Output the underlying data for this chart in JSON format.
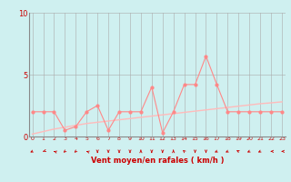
{
  "title": "",
  "xlabel": "Vent moyen/en rafales ( km/h )",
  "ylabel": "",
  "bg_color": "#cff0f0",
  "grid_color": "#aaaaaa",
  "line_color": "#ff8888",
  "regression_color": "#ffbbbb",
  "x_values": [
    0,
    1,
    2,
    3,
    4,
    5,
    6,
    7,
    8,
    9,
    10,
    11,
    12,
    13,
    14,
    15,
    16,
    17,
    18,
    19,
    20,
    21,
    22,
    23
  ],
  "y_scatter": [
    2.0,
    2.0,
    2.0,
    0.5,
    0.8,
    2.0,
    2.5,
    0.5,
    2.0,
    2.0,
    2.0,
    4.0,
    0.3,
    2.0,
    4.2,
    4.2,
    6.5,
    4.2,
    2.0,
    2.0,
    2.0,
    2.0,
    2.0,
    2.0
  ],
  "y_regression": [
    0.2,
    0.4,
    0.6,
    0.75,
    0.9,
    1.05,
    1.15,
    1.25,
    1.35,
    1.45,
    1.55,
    1.65,
    1.75,
    1.85,
    1.95,
    2.05,
    2.15,
    2.25,
    2.35,
    2.45,
    2.55,
    2.65,
    2.72,
    2.8
  ],
  "ylim": [
    0,
    10
  ],
  "xlim": [
    -0.3,
    23.3
  ],
  "yticks": [
    0,
    5,
    10
  ],
  "xticks": [
    0,
    1,
    2,
    3,
    4,
    5,
    6,
    7,
    8,
    9,
    10,
    11,
    12,
    13,
    14,
    15,
    16,
    17,
    18,
    19,
    20,
    21,
    22,
    23
  ],
  "xlabel_color": "#cc0000",
  "tick_color": "#cc0000",
  "arrow_color": "#cc0000",
  "spine_color": "#888888",
  "arrow_angles_deg": [
    225,
    210,
    150,
    240,
    240,
    150,
    270,
    270,
    270,
    270,
    90,
    270,
    270,
    90,
    120,
    270,
    270,
    225,
    225,
    135,
    225,
    225,
    180,
    180
  ]
}
